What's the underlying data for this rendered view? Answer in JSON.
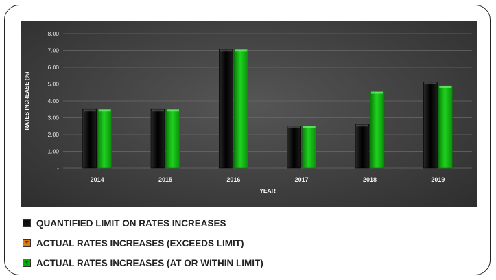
{
  "chart_data": {
    "type": "bar",
    "categories": [
      "2014",
      "2015",
      "2016",
      "2017",
      "2018",
      "2019"
    ],
    "series": [
      {
        "name": "QUANTIFIED LIMIT ON RATES INCREASES",
        "values": [
          3.5,
          3.5,
          7.05,
          2.5,
          2.6,
          5.1
        ],
        "color": "#0a0a0a"
      },
      {
        "name": "ACTUAL RATES INCREASES",
        "values": [
          3.5,
          3.5,
          7.05,
          2.5,
          4.55,
          4.9
        ],
        "color": "#00b000"
      }
    ],
    "xlabel": "YEAR",
    "ylabel": "RATES INCREASE (%)",
    "ylim": [
      0,
      8
    ],
    "yticks": [
      "-",
      "1.00",
      "2.00",
      "3.00",
      "4.00",
      "5.00",
      "6.00",
      "7.00",
      "8.00"
    ],
    "grid": true,
    "legend_position": "bottom-left"
  },
  "legend": {
    "items": [
      {
        "label": "QUANTIFIED LIMIT ON RATES INCREASES",
        "color": "#111111"
      },
      {
        "label": "ACTUAL RATES INCREASES (EXCEEDS LIMIT)",
        "color": "#e07a10"
      },
      {
        "label": "ACTUAL RATES INCREASES (AT OR WITHIN LIMIT)",
        "color": "#00b000"
      }
    ]
  }
}
